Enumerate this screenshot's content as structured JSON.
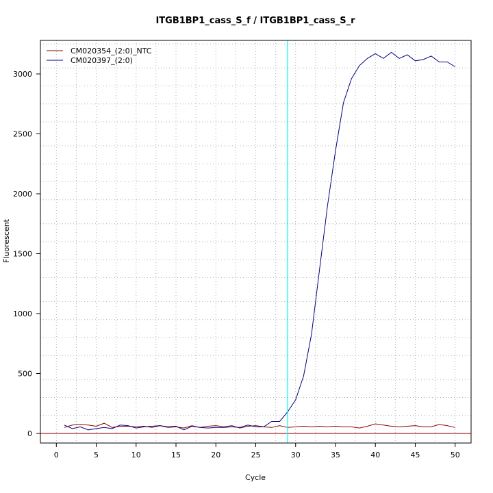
{
  "chart_data": {
    "type": "line",
    "title": "ITGB1BP1_cass_S_f / ITGB1BP1_cass_S_r",
    "xlabel": "Cycle",
    "ylabel": "Fluorescent",
    "xlim": [
      -2,
      52
    ],
    "ylim": [
      -80,
      3280
    ],
    "x_ticks": [
      0,
      5,
      10,
      15,
      20,
      25,
      30,
      35,
      40,
      45,
      50
    ],
    "y_ticks": [
      0,
      500,
      1000,
      1500,
      2000,
      2500,
      3000
    ],
    "grid_x": [
      0,
      2.5,
      5,
      7.5,
      10,
      12.5,
      15,
      17.5,
      20,
      22.5,
      25,
      27.5,
      30,
      32.5,
      35,
      37.5,
      40,
      42.5,
      45,
      47.5,
      50
    ],
    "grid_y": [
      0,
      150,
      300,
      450,
      650,
      800,
      950,
      1100,
      1300,
      1450,
      1600,
      1750,
      1950,
      2100,
      2250,
      2400,
      2600,
      2750,
      2900,
      3050,
      3250
    ],
    "grid": true,
    "legend_position": "top-left",
    "threshold_x": 29,
    "threshold_color": "#00ffff",
    "baseline_y": 0,
    "baseline_color": "#b22222",
    "x": [
      1,
      2,
      3,
      4,
      5,
      6,
      7,
      8,
      9,
      10,
      11,
      12,
      13,
      14,
      15,
      16,
      17,
      18,
      19,
      20,
      21,
      22,
      23,
      24,
      25,
      26,
      27,
      28,
      29,
      30,
      31,
      32,
      33,
      34,
      35,
      36,
      37,
      38,
      39,
      40,
      41,
      42,
      43,
      44,
      45,
      46,
      47,
      48,
      49,
      50
    ],
    "series": [
      {
        "name": "CM020354_(2:0)_NTC",
        "color": "#8b0000",
        "values": [
          50,
          70,
          75,
          70,
          60,
          85,
          50,
          60,
          60,
          55,
          60,
          50,
          65,
          50,
          55,
          45,
          65,
          50,
          60,
          65,
          55,
          65,
          45,
          60,
          65,
          55,
          50,
          65,
          50,
          55,
          60,
          55,
          60,
          55,
          60,
          55,
          55,
          45,
          60,
          80,
          70,
          60,
          55,
          60,
          65,
          55,
          55,
          75,
          65,
          50
        ]
      },
      {
        "name": "CM020397_(2:0)",
        "color": "#000080",
        "values": [
          70,
          40,
          55,
          30,
          40,
          50,
          40,
          70,
          65,
          45,
          55,
          60,
          65,
          55,
          60,
          30,
          60,
          50,
          45,
          50,
          50,
          55,
          50,
          70,
          55,
          55,
          100,
          100,
          180,
          280,
          480,
          830,
          1370,
          1900,
          2360,
          2760,
          2960,
          3070,
          3130,
          3170,
          3130,
          3180,
          3130,
          3160,
          3110,
          3120,
          3150,
          3100,
          3100,
          3060
        ]
      }
    ]
  }
}
